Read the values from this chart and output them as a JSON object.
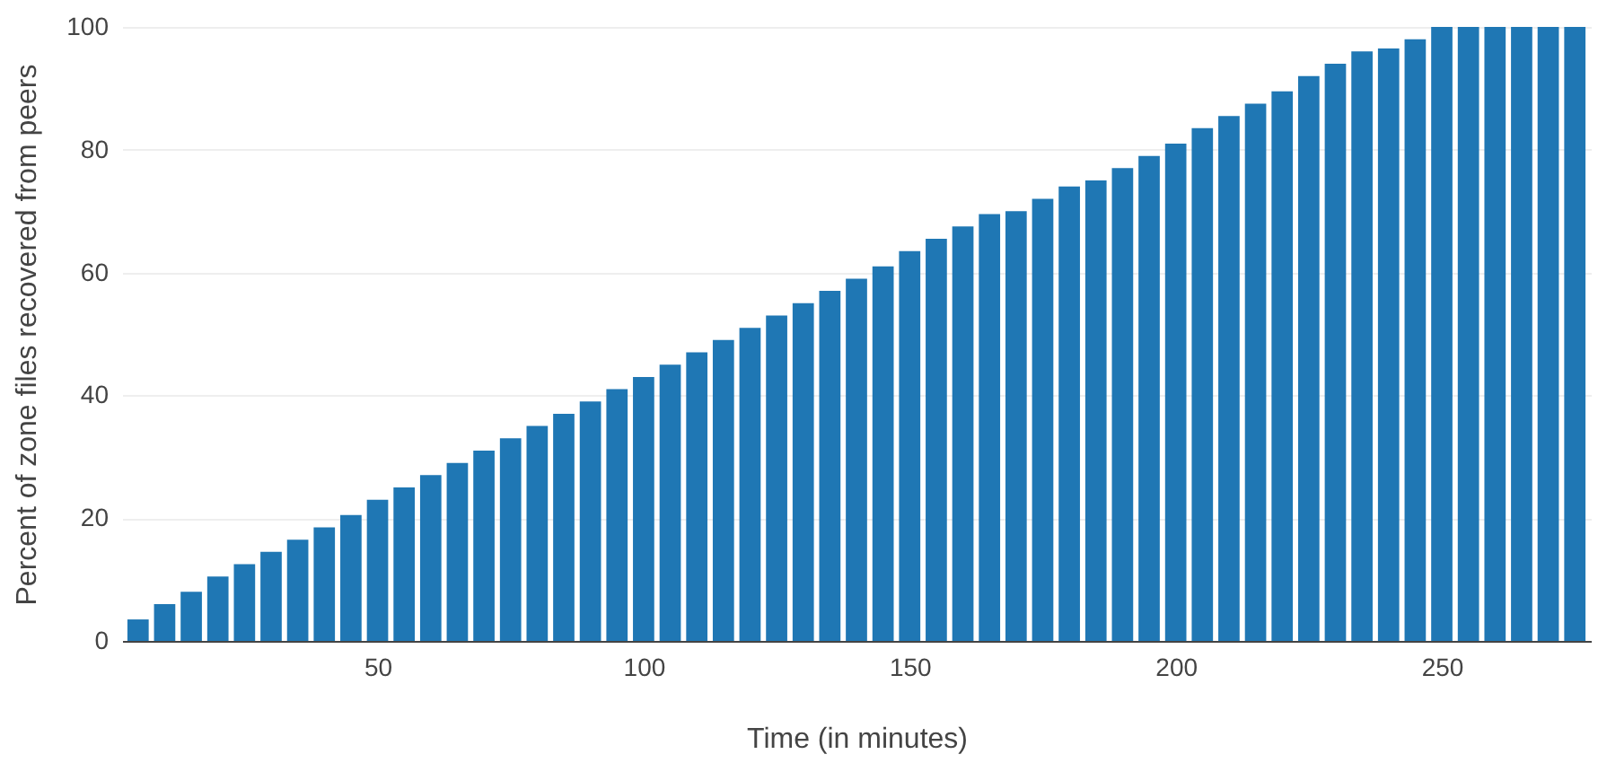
{
  "chart_data": {
    "type": "bar",
    "xlabel": "Time (in minutes)",
    "ylabel": "Percent of zone files recovered from peers",
    "x": [
      5,
      10,
      15,
      20,
      25,
      30,
      35,
      40,
      45,
      50,
      55,
      60,
      65,
      70,
      75,
      80,
      85,
      90,
      95,
      100,
      105,
      110,
      115,
      120,
      125,
      130,
      135,
      140,
      145,
      150,
      155,
      160,
      165,
      170,
      175,
      180,
      185,
      190,
      195,
      200,
      205,
      210,
      215,
      220,
      225,
      230,
      235,
      240,
      245,
      250,
      255,
      260,
      265,
      270,
      275
    ],
    "values": [
      3.5,
      6,
      8,
      10.5,
      12.5,
      14.5,
      16.5,
      18.5,
      20.5,
      23,
      25,
      27,
      29,
      31,
      33,
      35,
      37,
      39,
      41,
      43,
      45,
      47,
      49,
      51,
      53,
      55,
      57,
      59,
      61,
      63.5,
      65.5,
      67.5,
      69.5,
      70,
      72,
      74,
      75,
      77,
      79,
      81,
      83.5,
      85.5,
      87.5,
      89.5,
      92,
      94,
      96,
      96.5,
      98,
      100,
      100,
      100,
      100,
      100,
      100
    ],
    "color": "#1f77b4",
    "xlim": [
      2,
      278
    ],
    "xticks": [
      50,
      100,
      150,
      200,
      250
    ],
    "ylim": [
      0,
      100
    ],
    "yticks": [
      0,
      20,
      40,
      60,
      80,
      100
    ],
    "grid": "y"
  }
}
